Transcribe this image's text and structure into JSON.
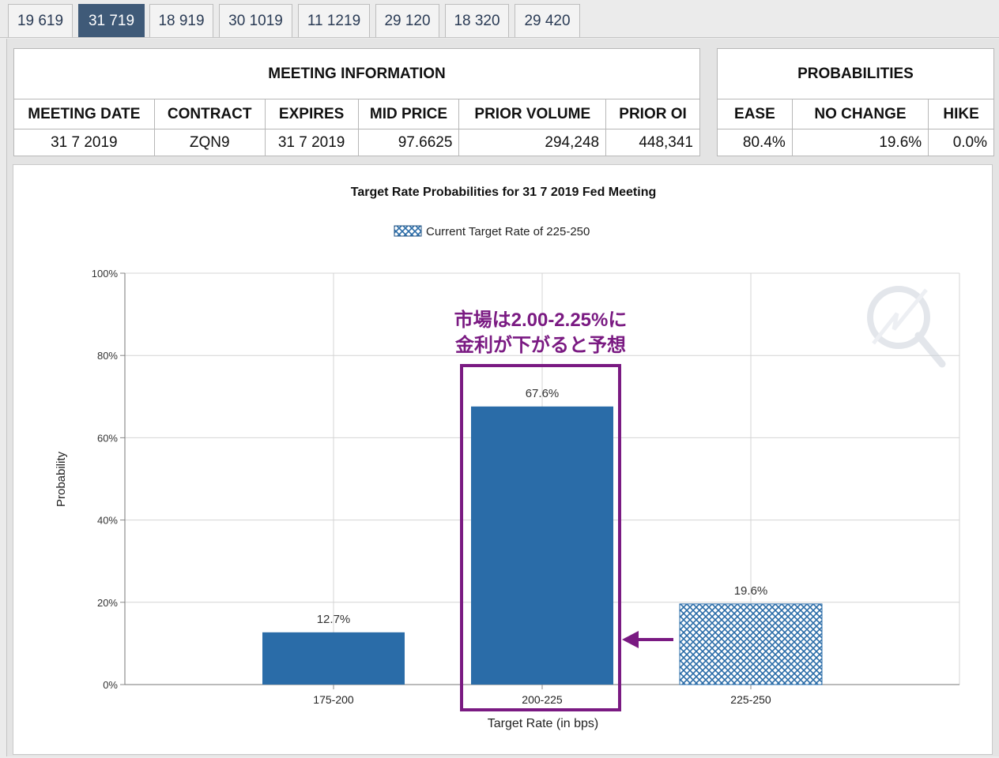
{
  "tabs": [
    {
      "label": "19 619",
      "active": false
    },
    {
      "label": "31 719",
      "active": true
    },
    {
      "label": "18 919",
      "active": false
    },
    {
      "label": "30 1019",
      "active": false
    },
    {
      "label": "11 1219",
      "active": false
    },
    {
      "label": "29 120",
      "active": false
    },
    {
      "label": "18 320",
      "active": false
    },
    {
      "label": "29 420",
      "active": false
    }
  ],
  "meeting_info": {
    "title": "MEETING INFORMATION",
    "headers": [
      "MEETING DATE",
      "CONTRACT",
      "EXPIRES",
      "MID PRICE",
      "PRIOR VOLUME",
      "PRIOR OI"
    ],
    "values": [
      "31 7 2019",
      "ZQN9",
      "31 7 2019",
      "97.6625",
      "294,248",
      "448,341"
    ]
  },
  "probabilities": {
    "title": "PROBABILITIES",
    "headers": [
      "EASE",
      "NO CHANGE",
      "HIKE"
    ],
    "values": [
      "80.4%",
      "19.6%",
      "0.0%"
    ]
  },
  "chart_data": {
    "type": "bar",
    "title": "Target Rate Probabilities for 31 7 2019 Fed Meeting",
    "legend": "Current Target Rate of 225-250",
    "xlabel": "Target Rate (in bps)",
    "ylabel": "Probability",
    "categories": [
      "175-200",
      "200-225",
      "225-250"
    ],
    "values": [
      12.7,
      67.6,
      19.6
    ],
    "value_labels": [
      "12.7%",
      "67.6%",
      "19.6%"
    ],
    "current_target_category": "225-250",
    "yticks": [
      "0%",
      "20%",
      "40%",
      "60%",
      "80%",
      "100%"
    ],
    "ylim": [
      0,
      100
    ],
    "grid": true,
    "bar_color": "#2a6ca8",
    "annotation": {
      "line1": "市場は2.00-2.25%に",
      "line2": "金利が下がると予想",
      "color": "#7a1a82",
      "target_category": "200-225"
    }
  }
}
